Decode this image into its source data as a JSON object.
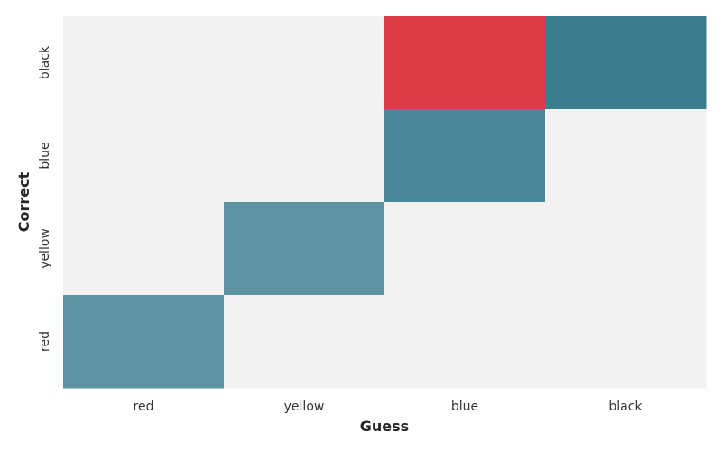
{
  "chart_data": {
    "type": "heatmap",
    "title": "",
    "xlabel": "Guess",
    "ylabel": "Correct",
    "x_categories": [
      "red",
      "yellow",
      "blue",
      "black"
    ],
    "y_categories": [
      "black",
      "blue",
      "yellow",
      "red"
    ],
    "cells": [
      {
        "correct": "black",
        "guess": "red",
        "kind": "empty"
      },
      {
        "correct": "black",
        "guess": "yellow",
        "kind": "empty"
      },
      {
        "correct": "black",
        "guess": "blue",
        "kind": "error"
      },
      {
        "correct": "black",
        "guess": "black",
        "kind": "match"
      },
      {
        "correct": "blue",
        "guess": "red",
        "kind": "empty"
      },
      {
        "correct": "blue",
        "guess": "yellow",
        "kind": "empty"
      },
      {
        "correct": "blue",
        "guess": "blue",
        "kind": "match"
      },
      {
        "correct": "blue",
        "guess": "black",
        "kind": "empty"
      },
      {
        "correct": "yellow",
        "guess": "red",
        "kind": "empty"
      },
      {
        "correct": "yellow",
        "guess": "yellow",
        "kind": "match"
      },
      {
        "correct": "yellow",
        "guess": "blue",
        "kind": "empty"
      },
      {
        "correct": "yellow",
        "guess": "black",
        "kind": "empty"
      },
      {
        "correct": "red",
        "guess": "red",
        "kind": "match"
      },
      {
        "correct": "red",
        "guess": "yellow",
        "kind": "empty"
      },
      {
        "correct": "red",
        "guess": "blue",
        "kind": "empty"
      },
      {
        "correct": "red",
        "guess": "black",
        "kind": "empty"
      }
    ],
    "cell_colors": {
      "empty": "#f2f2f2",
      "error": "#dc3b48",
      "match_by_correct": {
        "black": "#3c7d8f",
        "blue": "#4b8799",
        "yellow": "#5d93a2",
        "red": "#5d93a2"
      }
    },
    "grid": false,
    "legend": "none"
  }
}
